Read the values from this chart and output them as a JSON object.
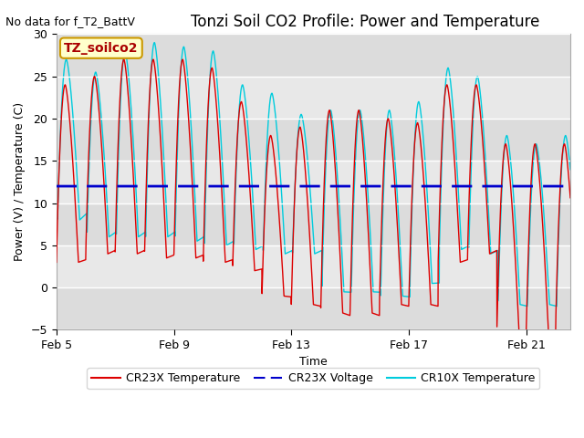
{
  "title": "Tonzi Soil CO2 Profile: Power and Temperature",
  "no_data_text": "No data for f_T2_BattV",
  "xlabel": "Time",
  "ylabel": "Power (V) / Temperature (C)",
  "ylim": [
    -5,
    30
  ],
  "yticks": [
    -5,
    0,
    5,
    10,
    15,
    20,
    25,
    30
  ],
  "xlim_days": [
    0,
    17.5
  ],
  "x_tick_labels": [
    "Feb 5",
    "Feb 9",
    "Feb 13",
    "Feb 17",
    "Feb 21"
  ],
  "x_tick_positions": [
    0,
    4,
    8,
    12,
    16
  ],
  "plot_bg_color": "#e8e8e8",
  "voltage_value": 12.0,
  "cr23x_color": "#dd0000",
  "cr10x_color": "#00ccdd",
  "voltage_color": "#0000cc",
  "annotation_text": "TZ_soilco2",
  "annotation_text_color": "#aa0000",
  "annotation_bg_color": "#ffffcc",
  "annotation_edge_color": "#cc9900",
  "title_fontsize": 12,
  "label_fontsize": 9,
  "tick_fontsize": 9,
  "no_data_fontsize": 9,
  "legend_fontsize": 9,
  "gray_band_color": "#d0d0d0",
  "white_band_color": "#e8e8e8"
}
